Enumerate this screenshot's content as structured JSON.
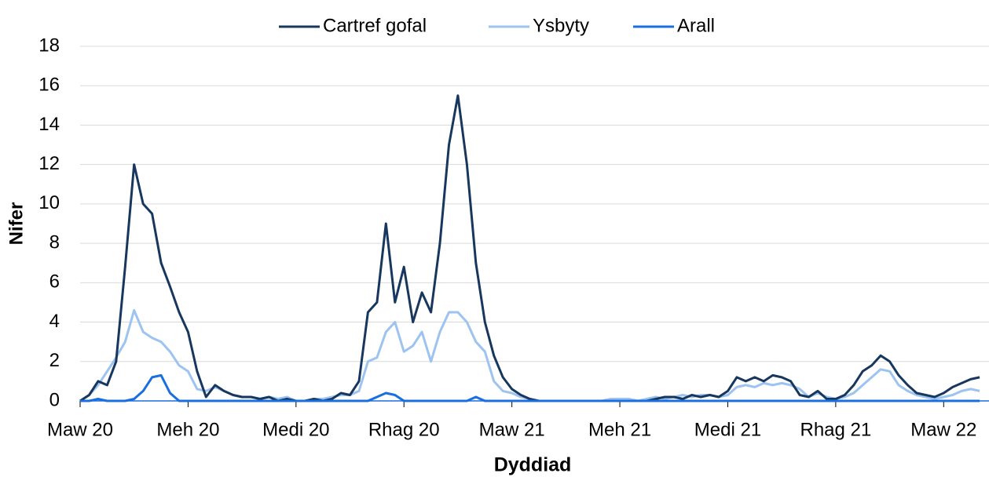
{
  "chart_data": {
    "type": "line",
    "xlabel": "Dyddiad",
    "ylabel": "Nifer",
    "xlim": [
      0,
      25.26
    ],
    "ylim": [
      0,
      18
    ],
    "yticks": [
      0,
      2,
      4,
      6,
      8,
      10,
      12,
      14,
      16,
      18
    ],
    "xticks": [
      {
        "value": 0,
        "label": "Maw 20"
      },
      {
        "value": 3,
        "label": "Meh 20"
      },
      {
        "value": 6,
        "label": "Medi 20"
      },
      {
        "value": 9,
        "label": "Rhag 20"
      },
      {
        "value": 12,
        "label": "Maw 21"
      },
      {
        "value": 15,
        "label": "Meh 21"
      },
      {
        "value": 18,
        "label": "Medi 21"
      },
      {
        "value": 21,
        "label": "Rhag 21"
      },
      {
        "value": 24,
        "label": "Maw 22"
      }
    ],
    "grid": true,
    "legend": "top",
    "x": [
      0,
      0.25,
      0.5,
      0.75,
      1,
      1.25,
      1.5,
      1.75,
      2,
      2.25,
      2.5,
      2.75,
      3,
      3.25,
      3.5,
      3.75,
      4,
      4.25,
      4.5,
      4.75,
      5,
      5.25,
      5.5,
      5.75,
      6,
      6.25,
      6.5,
      6.75,
      7,
      7.25,
      7.5,
      7.75,
      8,
      8.25,
      8.5,
      8.75,
      9,
      9.25,
      9.5,
      9.75,
      10,
      10.25,
      10.5,
      10.75,
      11,
      11.25,
      11.5,
      11.75,
      12,
      12.25,
      12.5,
      12.75,
      13,
      13.25,
      13.5,
      13.75,
      14,
      14.25,
      14.5,
      14.75,
      15,
      15.25,
      15.5,
      15.75,
      16,
      16.25,
      16.5,
      16.75,
      17,
      17.25,
      17.5,
      17.75,
      18,
      18.25,
      18.5,
      18.75,
      19,
      19.25,
      19.5,
      19.75,
      20,
      20.25,
      20.5,
      20.75,
      21,
      21.25,
      21.5,
      21.75,
      22,
      22.25,
      22.5,
      22.75,
      23,
      23.25,
      23.5,
      23.75,
      24,
      24.25,
      24.5,
      24.75,
      25
    ],
    "series": [
      {
        "name": "Cartref gofal",
        "color": "#17375e",
        "values": [
          0,
          0.3,
          1,
          0.8,
          2,
          6.8,
          12,
          10,
          9.5,
          7,
          5.8,
          4.5,
          3.5,
          1.5,
          0.2,
          0.8,
          0.5,
          0.3,
          0.2,
          0.2,
          0.1,
          0.2,
          0,
          0.1,
          0,
          0,
          0.1,
          0,
          0.1,
          0.4,
          0.3,
          1,
          4.5,
          5,
          9,
          5,
          6.8,
          4,
          5.5,
          4.5,
          8,
          13,
          15.5,
          12,
          7,
          4,
          2.3,
          1.2,
          0.6,
          0.3,
          0.1,
          0,
          0,
          0,
          0,
          0,
          0,
          0,
          0,
          0,
          0,
          0,
          0,
          0,
          0.1,
          0.2,
          0.2,
          0.1,
          0.3,
          0.2,
          0.3,
          0.2,
          0.5,
          1.2,
          1,
          1.2,
          1,
          1.3,
          1.2,
          1,
          0.3,
          0.2,
          0.5,
          0.1,
          0.1,
          0.3,
          0.8,
          1.5,
          1.8,
          2.3,
          2,
          1.3,
          0.8,
          0.4,
          0.3,
          0.2,
          0.4,
          0.7,
          0.9,
          1.1,
          1.2
        ]
      },
      {
        "name": "Ysbyty",
        "color": "#9dc3f0",
        "values": [
          0,
          0.3,
          0.8,
          1.5,
          2.2,
          3,
          4.6,
          3.5,
          3.2,
          3,
          2.5,
          1.8,
          1.5,
          0.6,
          0.5,
          0.7,
          0.5,
          0.3,
          0.2,
          0.2,
          0.1,
          0.2,
          0.1,
          0.2,
          0,
          0,
          0.1,
          0.1,
          0.2,
          0.3,
          0.3,
          0.5,
          2,
          2.2,
          3.5,
          4,
          2.5,
          2.8,
          3.5,
          2,
          3.5,
          4.5,
          4.5,
          4,
          3,
          2.5,
          1,
          0.5,
          0.4,
          0.2,
          0.1,
          0,
          0,
          0,
          0,
          0,
          0,
          0,
          0,
          0.1,
          0.1,
          0.1,
          0,
          0.1,
          0.2,
          0.1,
          0.2,
          0.3,
          0.2,
          0.3,
          0.3,
          0.2,
          0.3,
          0.7,
          0.8,
          0.7,
          0.9,
          0.8,
          0.9,
          0.8,
          0.6,
          0.2,
          0.4,
          0.2,
          0.1,
          0.2,
          0.4,
          0.8,
          1.2,
          1.6,
          1.5,
          0.8,
          0.5,
          0.3,
          0.2,
          0.1,
          0.2,
          0.3,
          0.5,
          0.6,
          0.5
        ]
      },
      {
        "name": "Arall",
        "color": "#1a6fe0",
        "values": [
          0,
          0,
          0.1,
          0,
          0,
          0,
          0.1,
          0.5,
          1.2,
          1.3,
          0.4,
          0,
          0,
          0,
          0,
          0,
          0,
          0,
          0,
          0,
          0,
          0,
          0,
          0,
          0,
          0,
          0,
          0,
          0,
          0,
          0,
          0,
          0,
          0.2,
          0.4,
          0.3,
          0,
          0,
          0,
          0,
          0,
          0,
          0,
          0,
          0.2,
          0,
          0,
          0,
          0,
          0,
          0,
          0,
          0,
          0,
          0,
          0,
          0,
          0,
          0,
          0,
          0,
          0,
          0,
          0,
          0,
          0,
          0,
          0,
          0,
          0,
          0,
          0,
          0,
          0,
          0,
          0,
          0,
          0,
          0,
          0,
          0,
          0,
          0,
          0,
          0,
          0,
          0,
          0,
          0,
          0,
          0,
          0,
          0,
          0,
          0,
          0,
          0,
          0,
          0,
          0,
          0
        ]
      }
    ]
  }
}
